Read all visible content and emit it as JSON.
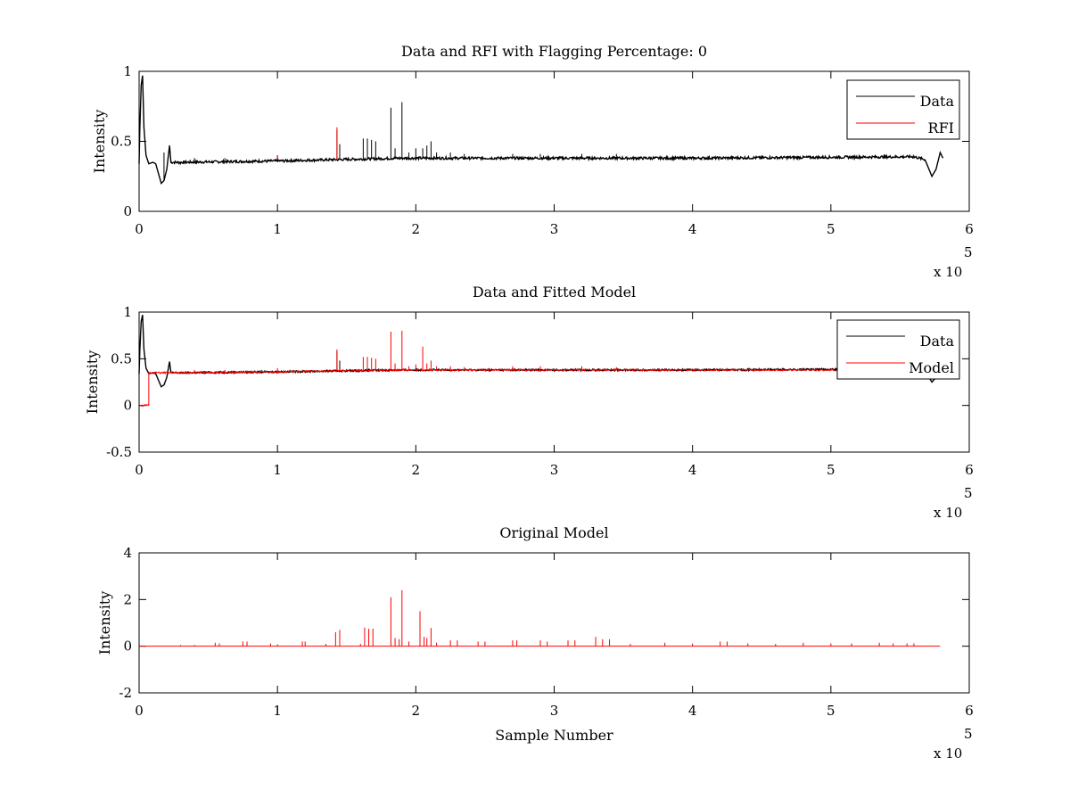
{
  "colors": {
    "data": "#000000",
    "rfi": "#ff0000",
    "background": "#ffffff"
  },
  "chart_data": [
    {
      "type": "line",
      "title": "Data and RFI with Flagging Percentage: 0",
      "xlabel": "",
      "ylabel": "Intensity",
      "xlim": [
        0,
        600000
      ],
      "ylim": [
        0,
        1
      ],
      "x_ticks": [
        0,
        1,
        2,
        3,
        4,
        5,
        6
      ],
      "y_ticks": [
        "0",
        "0.5",
        "1"
      ],
      "y_tick_values": [
        0,
        0.5,
        1
      ],
      "x_multiplier": "x 10",
      "x_multiplier_exp": "5",
      "grid": false,
      "legend_position": "top-right",
      "series": [
        {
          "name": "Data",
          "color": "#000000",
          "baseline": [
            [
              0,
              0.34
            ],
            [
              500,
              0.58
            ],
            [
              1500,
              0.9
            ],
            [
              2500,
              0.97
            ],
            [
              3500,
              0.6
            ],
            [
              5000,
              0.4
            ],
            [
              7000,
              0.34
            ],
            [
              10000,
              0.35
            ],
            [
              12000,
              0.34
            ],
            [
              14000,
              0.27
            ],
            [
              16000,
              0.2
            ],
            [
              18000,
              0.22
            ],
            [
              20000,
              0.3
            ],
            [
              22000,
              0.47
            ],
            [
              23000,
              0.35
            ],
            [
              30000,
              0.35
            ],
            [
              100000,
              0.36
            ],
            [
              190000,
              0.38
            ],
            [
              300000,
              0.38
            ],
            [
              400000,
              0.38
            ],
            [
              560000,
              0.39
            ],
            [
              568000,
              0.37
            ],
            [
              573000,
              0.25
            ],
            [
              576000,
              0.3
            ],
            [
              579000,
              0.42
            ],
            [
              581000,
              0.38
            ]
          ],
          "spikes": [
            [
              18000,
              0.42
            ],
            [
              40000,
              0.38
            ],
            [
              62000,
              0.38
            ],
            [
              100000,
              0.4
            ],
            [
              143000,
              0.58
            ],
            [
              145000,
              0.48
            ],
            [
              162000,
              0.52
            ],
            [
              165000,
              0.52
            ],
            [
              168000,
              0.51
            ],
            [
              171000,
              0.5
            ],
            [
              182000,
              0.74
            ],
            [
              185000,
              0.45
            ],
            [
              190000,
              0.78
            ],
            [
              195000,
              0.42
            ],
            [
              200000,
              0.45
            ],
            [
              205000,
              0.45
            ],
            [
              208000,
              0.47
            ],
            [
              211000,
              0.5
            ],
            [
              215000,
              0.42
            ],
            [
              225000,
              0.42
            ],
            [
              235000,
              0.41
            ],
            [
              270000,
              0.41
            ],
            [
              290000,
              0.41
            ],
            [
              320000,
              0.41
            ],
            [
              345000,
              0.41
            ]
          ]
        },
        {
          "name": "RFI",
          "color": "#ff0000",
          "spikes": [
            [
              100000,
              0.4
            ],
            [
              143000,
              0.6
            ]
          ]
        }
      ]
    },
    {
      "type": "line",
      "title": "Data and Fitted Model",
      "xlabel": "",
      "ylabel": "Intensity",
      "xlim": [
        0,
        600000
      ],
      "ylim": [
        -0.5,
        1
      ],
      "x_ticks": [
        0,
        1,
        2,
        3,
        4,
        5,
        6
      ],
      "y_ticks": [
        "-0.5",
        "0",
        "0.5",
        "1"
      ],
      "y_tick_values": [
        -0.5,
        0,
        0.5,
        1
      ],
      "x_multiplier": "x 10",
      "x_multiplier_exp": "5",
      "grid": false,
      "legend_position": "top-right",
      "series": [
        {
          "name": "Data",
          "color": "#000000",
          "baseline": [
            [
              0,
              0.34
            ],
            [
              500,
              0.58
            ],
            [
              1500,
              0.9
            ],
            [
              2500,
              0.97
            ],
            [
              3500,
              0.6
            ],
            [
              5000,
              0.4
            ],
            [
              7000,
              0.34
            ],
            [
              10000,
              0.35
            ],
            [
              12000,
              0.34
            ],
            [
              14000,
              0.27
            ],
            [
              16000,
              0.2
            ],
            [
              18000,
              0.22
            ],
            [
              20000,
              0.3
            ],
            [
              22000,
              0.47
            ],
            [
              23000,
              0.35
            ],
            [
              30000,
              0.35
            ],
            [
              100000,
              0.36
            ],
            [
              190000,
              0.38
            ],
            [
              300000,
              0.38
            ],
            [
              400000,
              0.38
            ],
            [
              560000,
              0.39
            ],
            [
              568000,
              0.37
            ],
            [
              573000,
              0.25
            ],
            [
              576000,
              0.3
            ],
            [
              579000,
              0.42
            ],
            [
              581000,
              0.38
            ]
          ],
          "spikes": [
            [
              143000,
              0.58
            ],
            [
              145000,
              0.48
            ]
          ]
        },
        {
          "name": "Model",
          "color": "#ff0000",
          "baseline": [
            [
              1000,
              0
            ],
            [
              7000,
              0
            ],
            [
              7000,
              0.35
            ],
            [
              30000,
              0.35
            ],
            [
              100000,
              0.36
            ],
            [
              190000,
              0.38
            ],
            [
              300000,
              0.38
            ],
            [
              400000,
              0.38
            ],
            [
              503000,
              0.38
            ]
          ],
          "spikes": [
            [
              40000,
              0.38
            ],
            [
              62000,
              0.38
            ],
            [
              100000,
              0.4
            ],
            [
              143000,
              0.6
            ],
            [
              162000,
              0.52
            ],
            [
              165000,
              0.52
            ],
            [
              168000,
              0.51
            ],
            [
              171000,
              0.5
            ],
            [
              182000,
              0.79
            ],
            [
              185000,
              0.45
            ],
            [
              190000,
              0.8
            ],
            [
              195000,
              0.42
            ],
            [
              200000,
              0.44
            ],
            [
              205000,
              0.63
            ],
            [
              208000,
              0.45
            ],
            [
              211000,
              0.48
            ],
            [
              215000,
              0.42
            ],
            [
              225000,
              0.42
            ],
            [
              235000,
              0.41
            ],
            [
              270000,
              0.42
            ],
            [
              290000,
              0.42
            ],
            [
              320000,
              0.42
            ],
            [
              345000,
              0.41
            ]
          ]
        }
      ]
    },
    {
      "type": "line",
      "title": "Original Model",
      "xlabel": "Sample Number",
      "ylabel": "Intensity",
      "xlim": [
        0,
        600000
      ],
      "ylim": [
        -2,
        4
      ],
      "x_ticks": [
        0,
        1,
        2,
        3,
        4,
        5,
        6
      ],
      "y_ticks": [
        "-2",
        "0",
        "2",
        "4"
      ],
      "y_tick_values": [
        -2,
        0,
        2,
        4
      ],
      "x_multiplier": "x 10",
      "x_multiplier_exp": "5",
      "grid": false,
      "series": [
        {
          "color": "#ff0000",
          "baseline": [
            [
              0,
              0
            ],
            [
              579000,
              0
            ]
          ],
          "spikes": [
            [
              30000,
              0.05
            ],
            [
              40000,
              0.05
            ],
            [
              55000,
              0.15
            ],
            [
              58000,
              0.12
            ],
            [
              75000,
              0.2
            ],
            [
              78000,
              0.2
            ],
            [
              95000,
              0.12
            ],
            [
              100000,
              0.08
            ],
            [
              118000,
              0.2
            ],
            [
              120000,
              0.2
            ],
            [
              135000,
              0.1
            ],
            [
              142000,
              0.6
            ],
            [
              145000,
              0.7
            ],
            [
              160000,
              0.1
            ],
            [
              163000,
              0.8
            ],
            [
              166000,
              0.75
            ],
            [
              169000,
              0.75
            ],
            [
              182000,
              2.1
            ],
            [
              185000,
              0.35
            ],
            [
              188000,
              0.3
            ],
            [
              190000,
              2.4
            ],
            [
              195000,
              0.2
            ],
            [
              203000,
              1.5
            ],
            [
              206000,
              0.4
            ],
            [
              208000,
              0.35
            ],
            [
              211000,
              0.78
            ],
            [
              215000,
              0.15
            ],
            [
              225000,
              0.25
            ],
            [
              230000,
              0.25
            ],
            [
              245000,
              0.2
            ],
            [
              250000,
              0.2
            ],
            [
              270000,
              0.25
            ],
            [
              273000,
              0.25
            ],
            [
              290000,
              0.25
            ],
            [
              295000,
              0.2
            ],
            [
              310000,
              0.25
            ],
            [
              315000,
              0.25
            ],
            [
              330000,
              0.4
            ],
            [
              335000,
              0.3
            ],
            [
              340000,
              0.3
            ],
            [
              355000,
              0.1
            ],
            [
              380000,
              0.15
            ],
            [
              400000,
              0.12
            ],
            [
              420000,
              0.2
            ],
            [
              425000,
              0.2
            ],
            [
              440000,
              0.12
            ],
            [
              460000,
              0.1
            ],
            [
              480000,
              0.15
            ],
            [
              500000,
              0.12
            ],
            [
              515000,
              0.12
            ],
            [
              535000,
              0.15
            ],
            [
              545000,
              0.12
            ],
            [
              555000,
              0.12
            ],
            [
              560000,
              0.12
            ]
          ]
        }
      ]
    }
  ]
}
